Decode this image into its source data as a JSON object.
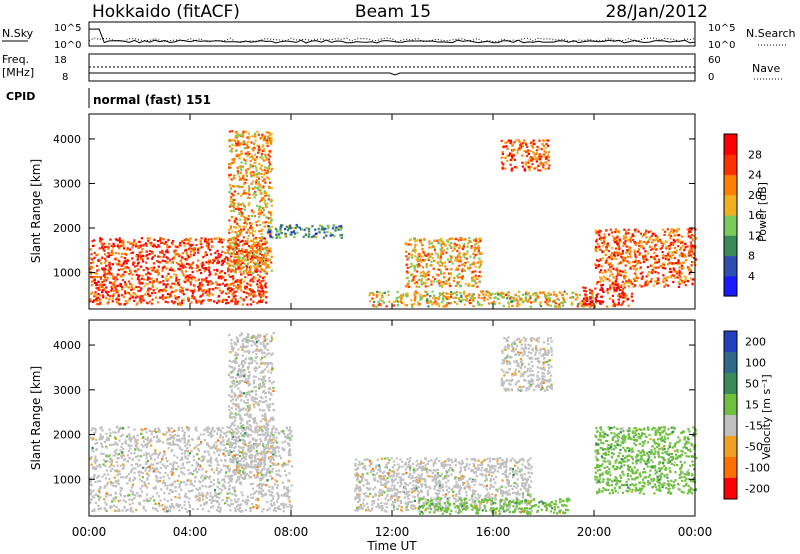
{
  "header": {
    "station": "Hokkaido (fitACF)",
    "beam": "Beam 15",
    "date": "28/Jan/2012"
  },
  "summary_panels": {
    "nsky_label": "N.Sky",
    "nsearch_label": "N.Search",
    "noise_ticks": [
      "10^5",
      "10^0"
    ],
    "freq_label_line1": "Freq.",
    "freq_label_line2": "[MHz]",
    "freq_ticks": [
      "18",
      "8"
    ],
    "nave_label": "Nave",
    "nave_ticks": [
      "60",
      "0"
    ],
    "cpid_label": "CPID",
    "cpid_value": "normal (fast) 151"
  },
  "chart_data": [
    {
      "type": "heatmap",
      "title": "",
      "xlabel": "Time UT",
      "ylabel": "Slant Range [km]",
      "x_ticks": [
        "00:00",
        "04:00",
        "08:00",
        "12:00",
        "16:00",
        "20:00",
        "00:00"
      ],
      "y_ticks": [
        1000,
        2000,
        3000,
        4000
      ],
      "x_range_hours": [
        0,
        24
      ],
      "y_range_km": [
        180,
        4560
      ],
      "colorbar": {
        "label": "Power [dB]",
        "ticks": [
          4,
          8,
          12,
          16,
          20,
          24,
          28
        ],
        "range": [
          0,
          32
        ],
        "colors": [
          "#1a1aff",
          "#2d4fb0",
          "#3a8a5a",
          "#7acb5a",
          "#f0b020",
          "#ff8000",
          "#ff3000",
          "#ff0000"
        ]
      },
      "regions": [
        {
          "t": [
            0.0,
            7.0
          ],
          "range_km": [
            300,
            1800
          ],
          "value_db": 26
        },
        {
          "t": [
            5.5,
            7.2
          ],
          "range_km": [
            1000,
            4200
          ],
          "value_db": 20
        },
        {
          "t": [
            7.0,
            10.0
          ],
          "range_km": [
            1800,
            2100
          ],
          "value_db": 10
        },
        {
          "t": [
            11.0,
            20.0
          ],
          "range_km": [
            250,
            600
          ],
          "value_db": 18
        },
        {
          "t": [
            12.5,
            15.5
          ],
          "range_km": [
            700,
            1800
          ],
          "value_db": 20
        },
        {
          "t": [
            16.3,
            18.2
          ],
          "range_km": [
            3300,
            4000
          ],
          "value_db": 24
        },
        {
          "t": [
            20.0,
            24.0
          ],
          "range_km": [
            700,
            2000
          ],
          "value_db": 24
        },
        {
          "t": [
            19.5,
            21.5
          ],
          "range_km": [
            250,
            700
          ],
          "value_db": 28
        }
      ]
    },
    {
      "type": "heatmap",
      "title": "",
      "xlabel": "Time UT",
      "ylabel": "Slant Range [km]",
      "x_ticks": [
        "00:00",
        "04:00",
        "08:00",
        "12:00",
        "16:00",
        "20:00",
        "00:00"
      ],
      "y_ticks": [
        1000,
        2000,
        3000,
        4000
      ],
      "x_range_hours": [
        0,
        24
      ],
      "y_range_km": [
        180,
        4560
      ],
      "colorbar": {
        "label": "Velocity [m s⁻¹]",
        "ticks": [
          200,
          100,
          50,
          15,
          -15,
          -50,
          -100,
          -200
        ],
        "colors": [
          "#2040c0",
          "#2d6a8a",
          "#3a8a5a",
          "#70c040",
          "#c0c0c0",
          "#f0a020",
          "#ff7000",
          "#ff0000"
        ]
      },
      "regions": [
        {
          "t": [
            0.0,
            8.0
          ],
          "range_km": [
            300,
            2200
          ],
          "value_ms": 0
        },
        {
          "t": [
            5.5,
            7.3
          ],
          "range_km": [
            1000,
            4300
          ],
          "value_ms": 0
        },
        {
          "t": [
            10.5,
            17.5
          ],
          "range_km": [
            300,
            1500
          ],
          "value_ms": 0
        },
        {
          "t": [
            13.0,
            19.0
          ],
          "range_km": [
            250,
            600
          ],
          "value_ms": 40
        },
        {
          "t": [
            16.3,
            18.3
          ],
          "range_km": [
            3000,
            4200
          ],
          "value_ms": 0
        },
        {
          "t": [
            20.0,
            24.0
          ],
          "range_km": [
            700,
            2200
          ],
          "value_ms": 40
        }
      ]
    }
  ]
}
